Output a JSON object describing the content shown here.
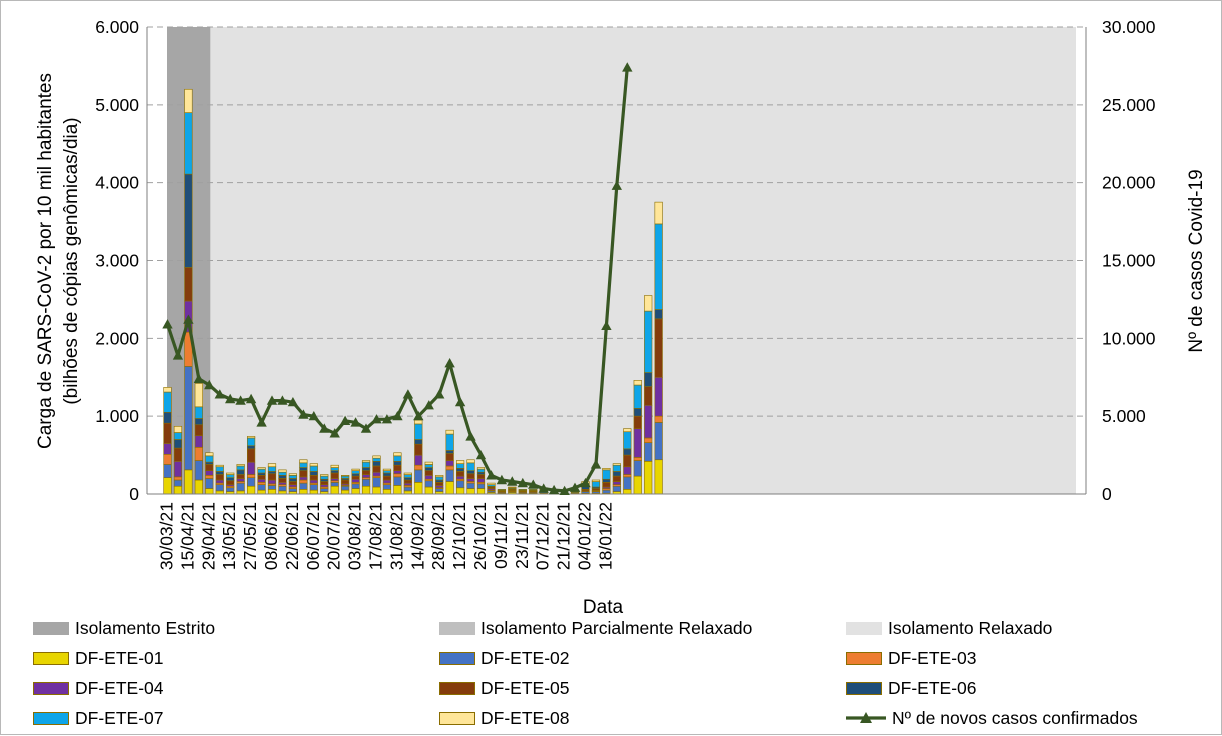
{
  "chart_data": {
    "type": "bar",
    "stacked": true,
    "xlabel": "Data",
    "ylabel_lines": [
      "Carga de SARS-CoV-2 por 10 mil habitantes",
      "(bilhões de cópias genômicas/dia)"
    ],
    "ylabel2": "Nº de casos Covid-19",
    "ylim": [
      0,
      6000
    ],
    "y2lim": [
      0,
      30000
    ],
    "yticks": [
      "0",
      "1.000",
      "2.000",
      "3.000",
      "4.000",
      "5.000",
      "6.000"
    ],
    "y2ticks": [
      "0",
      "5.000",
      "10.000",
      "15.000",
      "20.000",
      "25.000",
      "30.000"
    ],
    "xtick_labels": [
      "30/03/21",
      "15/04/21",
      "29/04/21",
      "13/05/21",
      "27/05/21",
      "08/06/21",
      "22/06/21",
      "06/07/21",
      "20/07/21",
      "03/08/21",
      "17/08/21",
      "31/08/21",
      "14/09/21",
      "28/09/21",
      "12/10/21",
      "26/10/21",
      "09/11/21",
      "23/11/21",
      "07/12/21",
      "21/12/21",
      "04/01/22",
      "18/01/22"
    ],
    "periods": [
      {
        "name": "Isolamento Estrito",
        "from": 0,
        "to": 2,
        "color": "#a6a6a6"
      },
      {
        "name": "Isolamento Parcialmente Relaxado",
        "from": 2,
        "to": 2,
        "color": "#bfbfbf"
      },
      {
        "name": "Isolamento Relaxado",
        "from": 2,
        "to": 44,
        "color": "#e2e2e2"
      }
    ],
    "series": [
      {
        "name": "DF-ETE-01",
        "color": "#e8d500",
        "values": [
          210,
          100,
          310,
          180,
          70,
          40,
          30,
          40,
          100,
          50,
          60,
          40,
          30,
          60,
          50,
          30,
          100,
          50,
          70,
          100,
          90,
          60,
          110,
          40,
          150,
          90,
          30,
          160,
          80,
          70,
          70,
          20,
          10,
          20,
          10,
          10,
          10,
          0,
          0,
          0,
          10,
          10,
          10,
          30,
          60,
          230,
          420,
          440
        ]
      },
      {
        "name": "DF-ETE-02",
        "color": "#4472c4",
        "values": [
          170,
          80,
          1330,
          250,
          130,
          80,
          50,
          100,
          110,
          70,
          50,
          60,
          40,
          80,
          70,
          40,
          50,
          50,
          60,
          90,
          120,
          60,
          110,
          50,
          160,
          80,
          40,
          150,
          90,
          70,
          60,
          20,
          10,
          10,
          10,
          10,
          20,
          0,
          0,
          0,
          20,
          20,
          40,
          70,
          160,
          200,
          240,
          480
        ]
      },
      {
        "name": "DF-ETE-03",
        "color": "#ed7d31",
        "values": [
          130,
          40,
          440,
          170,
          40,
          20,
          20,
          20,
          40,
          30,
          20,
          20,
          20,
          40,
          20,
          20,
          20,
          10,
          20,
          20,
          20,
          20,
          40,
          20,
          60,
          20,
          10,
          50,
          20,
          20,
          20,
          10,
          0,
          10,
          0,
          0,
          0,
          0,
          0,
          0,
          0,
          10,
          20,
          20,
          30,
          40,
          60,
          80
        ]
      },
      {
        "name": "DF-ETE-04",
        "color": "#7030a0",
        "values": [
          140,
          200,
          400,
          150,
          60,
          40,
          20,
          40,
          160,
          40,
          50,
          30,
          30,
          40,
          40,
          30,
          30,
          20,
          40,
          40,
          50,
          40,
          40,
          30,
          130,
          50,
          30,
          70,
          40,
          40,
          50,
          20,
          10,
          10,
          10,
          10,
          10,
          0,
          0,
          0,
          10,
          10,
          20,
          40,
          100,
          370,
          420,
          500
        ]
      },
      {
        "name": "DF-ETE-05",
        "color": "#843c0c",
        "values": [
          260,
          170,
          430,
          140,
          80,
          70,
          50,
          50,
          170,
          50,
          80,
          50,
          40,
          80,
          60,
          40,
          70,
          50,
          40,
          50,
          80,
          50,
          70,
          40,
          140,
          60,
          40,
          90,
          60,
          60,
          50,
          20,
          10,
          10,
          10,
          10,
          10,
          0,
          0,
          10,
          20,
          20,
          60,
          70,
          150,
          160,
          240,
          750
        ]
      },
      {
        "name": "DF-ETE-06",
        "color": "#1f4e79",
        "values": [
          140,
          110,
          1200,
          80,
          30,
          40,
          40,
          60,
          40,
          30,
          30,
          40,
          40,
          40,
          50,
          30,
          30,
          20,
          30,
          40,
          60,
          40,
          50,
          30,
          60,
          40,
          30,
          40,
          40,
          40,
          30,
          10,
          10,
          10,
          10,
          10,
          10,
          0,
          0,
          10,
          40,
          20,
          40,
          60,
          80,
          100,
          180,
          120
        ]
      },
      {
        "name": "DF-ETE-07",
        "color": "#0ea5e8",
        "values": [
          260,
          90,
          790,
          150,
          80,
          60,
          40,
          50,
          100,
          50,
          60,
          40,
          40,
          60,
          70,
          40,
          40,
          30,
          40,
          70,
          40,
          30,
          70,
          40,
          200,
          40,
          40,
          210,
          60,
          100,
          40,
          20,
          10,
          10,
          10,
          10,
          20,
          0,
          0,
          10,
          40,
          70,
          120,
          80,
          220,
          300,
          790,
          1100
        ]
      },
      {
        "name": "DF-ETE-08",
        "color": "#ffe699",
        "values": [
          60,
          80,
          300,
          300,
          40,
          20,
          20,
          20,
          20,
          20,
          40,
          30,
          20,
          40,
          30,
          20,
          30,
          10,
          20,
          20,
          30,
          20,
          40,
          20,
          50,
          30,
          20,
          50,
          40,
          40,
          20,
          20,
          0,
          10,
          0,
          0,
          0,
          0,
          0,
          0,
          20,
          20,
          20,
          20,
          40,
          60,
          200,
          280
        ]
      }
    ],
    "line": {
      "name": "Nº de novos casos confirmados",
      "color": "#385723",
      "axis": "right",
      "points": [
        [
          0,
          10900
        ],
        [
          1,
          8900
        ],
        [
          2,
          11200
        ],
        [
          3,
          7400
        ],
        [
          4,
          7000
        ],
        [
          5,
          6400
        ],
        [
          6,
          6100
        ],
        [
          7,
          6000
        ],
        [
          8,
          6100
        ],
        [
          9,
          4600
        ],
        [
          10,
          6000
        ],
        [
          11,
          6000
        ],
        [
          12,
          5900
        ],
        [
          13,
          5100
        ],
        [
          14,
          5000
        ],
        [
          15,
          4200
        ],
        [
          16,
          3900
        ],
        [
          17,
          4700
        ],
        [
          18,
          4600
        ],
        [
          19,
          4200
        ],
        [
          20,
          4800
        ],
        [
          21,
          4800
        ],
        [
          22,
          5000
        ],
        [
          23,
          6400
        ],
        [
          24,
          5000
        ],
        [
          25,
          5700
        ],
        [
          26,
          6400
        ],
        [
          27,
          8400
        ],
        [
          28,
          5900
        ],
        [
          29,
          3700
        ],
        [
          30,
          2500
        ],
        [
          31,
          1200
        ],
        [
          32,
          900
        ],
        [
          33,
          800
        ],
        [
          34,
          700
        ],
        [
          35,
          600
        ],
        [
          36,
          350
        ],
        [
          37,
          250
        ],
        [
          38,
          200
        ],
        [
          39,
          400
        ],
        [
          40,
          700
        ],
        [
          41,
          1900
        ],
        [
          42,
          10800
        ],
        [
          43,
          19800
        ],
        [
          44,
          27400
        ]
      ]
    },
    "legend_position": "bottom"
  }
}
